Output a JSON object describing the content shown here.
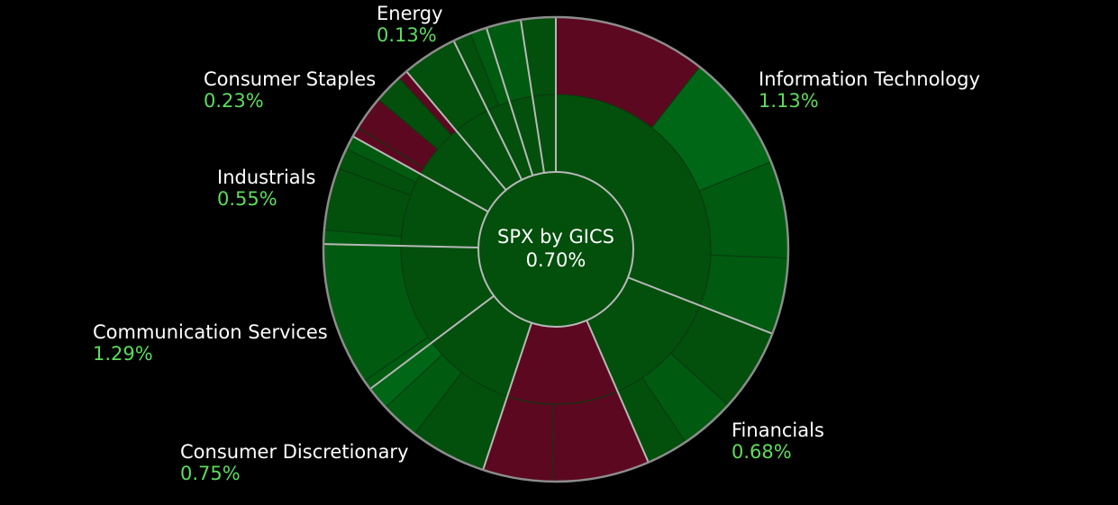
{
  "colors": {
    "background": "#000000",
    "positive_text": "#5ddc5d",
    "separator": "#b8b8b8",
    "outline": "#8c8c8c",
    "green_dark": "#034f0c",
    "green_mid": "#005a10",
    "green_bright": "#006717",
    "red": "#5c0820"
  },
  "chart_data": {
    "type": "sunburst",
    "title": "SPX by GICS",
    "total_change": "0.70%",
    "sectors": [
      {
        "name": "Information Technology",
        "change": "1.13%",
        "weight": 32,
        "color": "green_dark",
        "children": [
          {
            "weight": 11,
            "color": "red"
          },
          {
            "weight": 8.5,
            "color": "green_bright"
          },
          {
            "weight": 7,
            "color": "green_mid"
          },
          {
            "weight": 5.5,
            "color": "green_mid"
          }
        ]
      },
      {
        "name": "Financials",
        "change": "0.68%",
        "weight": 13,
        "color": "green_dark",
        "children": [
          {
            "weight": 6,
            "color": "green_dark"
          },
          {
            "weight": 4,
            "color": "green_mid"
          },
          {
            "weight": 3,
            "color": "green_dark"
          }
        ]
      },
      {
        "name": "",
        "change": "",
        "weight": 12,
        "color": "red",
        "children": [
          {
            "weight": 7,
            "color": "red"
          },
          {
            "weight": 5,
            "color": "red"
          }
        ]
      },
      {
        "name": "Consumer Discretionary",
        "change": "0.75%",
        "weight": 10,
        "color": "green_dark",
        "children": [
          {
            "weight": 5.5,
            "color": "green_dark"
          },
          {
            "weight": 2.8,
            "color": "green_mid"
          },
          {
            "weight": 1.7,
            "color": "green_bright"
          }
        ]
      },
      {
        "name": "Communication Services",
        "change": "1.29%",
        "weight": 11,
        "color": "green_dark",
        "children": [
          {
            "weight": 0.7,
            "color": "green_mid"
          },
          {
            "weight": 10.3,
            "color": "green_mid"
          }
        ]
      },
      {
        "name": "Industrials",
        "change": "0.55%",
        "weight": 8,
        "color": "green_dark",
        "children": [
          {
            "weight": 1,
            "color": "green_mid"
          },
          {
            "weight": 4.5,
            "color": "green_dark"
          },
          {
            "weight": 1.5,
            "color": "green_dark"
          },
          {
            "weight": 1,
            "color": "green_mid"
          }
        ]
      },
      {
        "name": "Consumer Staples",
        "change": "0.23%",
        "weight": 6,
        "color": "green_dark",
        "children": [
          {
            "weight": 0.7,
            "color": "red"
          },
          {
            "weight": 2.5,
            "color": "red"
          },
          {
            "weight": 2.1,
            "color": "green_dark"
          },
          {
            "weight": 0.7,
            "color": "red"
          }
        ]
      },
      {
        "name": "Energy",
        "change": "0.13%",
        "weight": 4,
        "color": "green_dark",
        "children": [
          {
            "weight": 4,
            "color": "green_dark"
          }
        ]
      },
      {
        "name": "",
        "change": "",
        "weight": 2.5,
        "color": "green_dark",
        "children": [
          {
            "weight": 1.3,
            "color": "green_dark"
          },
          {
            "weight": 1.2,
            "color": "green_mid"
          }
        ]
      },
      {
        "name": "",
        "change": "",
        "weight": 2.5,
        "color": "green_dark",
        "children": [
          {
            "weight": 2.5,
            "color": "green_mid"
          }
        ]
      },
      {
        "name": "",
        "change": "",
        "weight": 2.5,
        "color": "green_dark",
        "children": [
          {
            "weight": 2.5,
            "color": "green_dark"
          }
        ]
      }
    ]
  }
}
